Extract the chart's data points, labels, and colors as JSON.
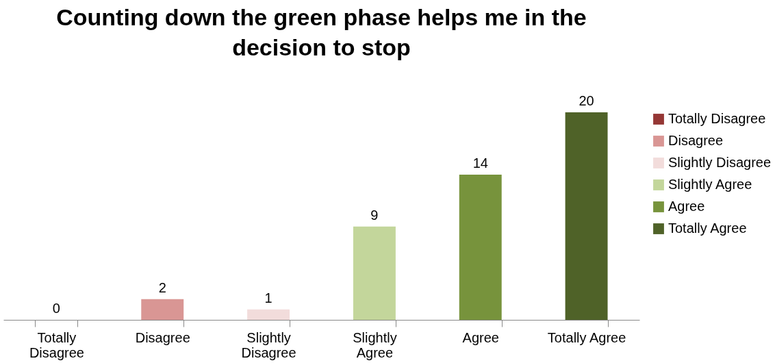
{
  "chart_data": {
    "type": "bar",
    "title": "Counting down the green phase helps me in the decision to stop",
    "categories": [
      "Totally Disagree",
      "Disagree",
      "Slightly Disagree",
      "Slightly Agree",
      "Agree",
      "Totally Agree"
    ],
    "stacked": true,
    "series": [
      {
        "name": "Totally Disagree",
        "color": "#953735",
        "values": [
          0,
          null,
          null,
          null,
          null,
          null
        ]
      },
      {
        "name": "Disagree",
        "color": "#d99694",
        "values": [
          null,
          2,
          null,
          null,
          null,
          null
        ]
      },
      {
        "name": "Slightly Disagree",
        "color": "#f2dcdb",
        "values": [
          null,
          null,
          1,
          null,
          null,
          null
        ]
      },
      {
        "name": "Slightly Agree",
        "color": "#c3d69b",
        "values": [
          null,
          null,
          null,
          9,
          null,
          null
        ]
      },
      {
        "name": "Agree",
        "color": "#77933c",
        "values": [
          null,
          null,
          null,
          null,
          14,
          null
        ]
      },
      {
        "name": "Totally Agree",
        "color": "#4f6228",
        "values": [
          null,
          null,
          null,
          null,
          null,
          20
        ]
      }
    ],
    "data_labels": true,
    "legend": "right",
    "grid": false
  }
}
